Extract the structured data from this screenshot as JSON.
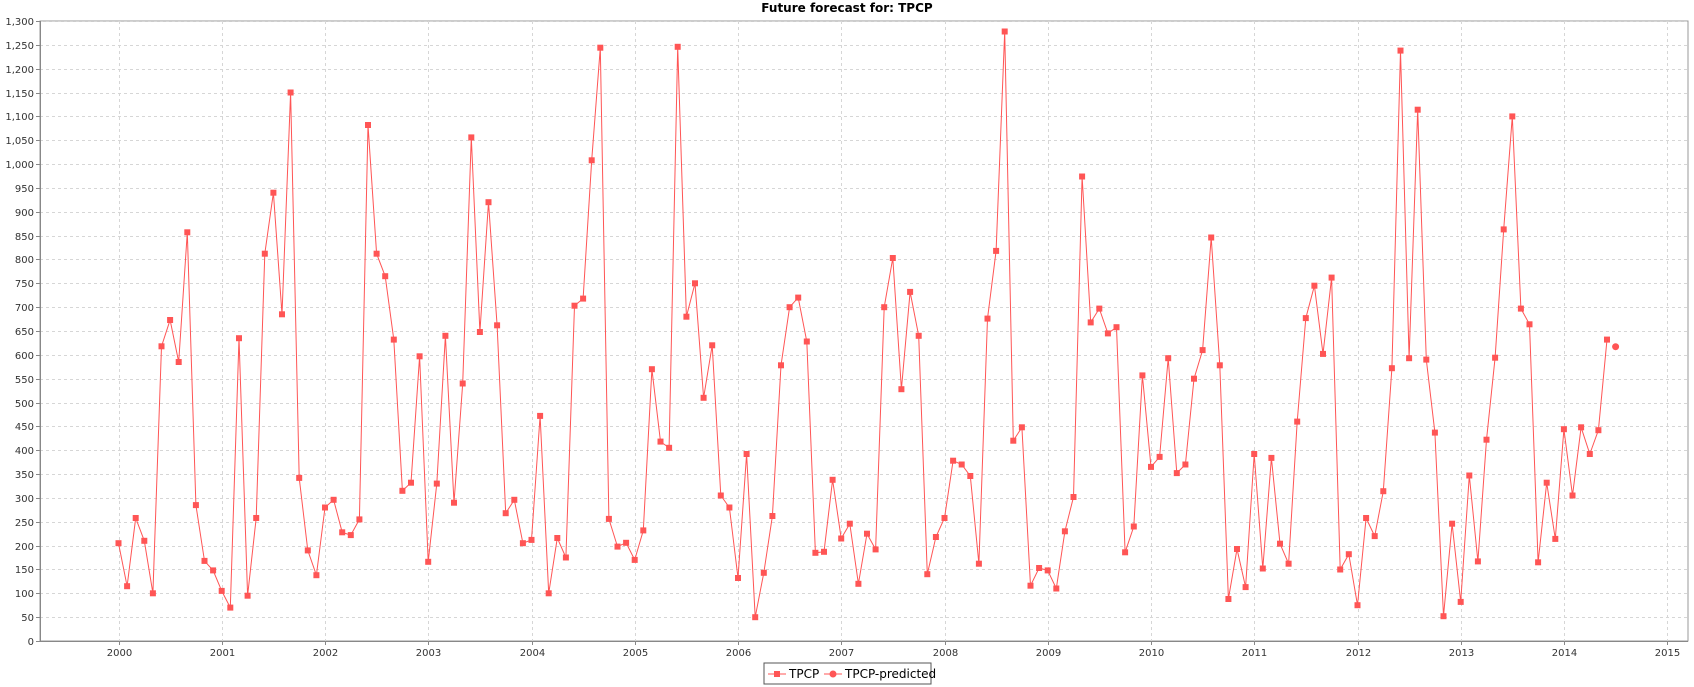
{
  "chart_data": {
    "type": "line",
    "title": "Future forecast for: TPCP",
    "xlabel": "",
    "ylabel": "",
    "xlim": [
      1999.5,
      2015.2
    ],
    "ylim": [
      0,
      1300
    ],
    "y_ticks": [
      0,
      50,
      100,
      150,
      200,
      250,
      300,
      350,
      400,
      450,
      500,
      550,
      600,
      650,
      700,
      750,
      800,
      850,
      900,
      950,
      1000,
      1050,
      1100,
      1150,
      1200,
      1250,
      1300
    ],
    "y_tick_labels": [
      "0",
      "50",
      "100",
      "150",
      "200",
      "250",
      "300",
      "350",
      "400",
      "450",
      "500",
      "550",
      "600",
      "650",
      "700",
      "750",
      "800",
      "850",
      "900",
      "950",
      "1,000",
      "1,050",
      "1,100",
      "1,150",
      "1,200",
      "1,250",
      "1,300"
    ],
    "x_ticks": [
      2000,
      2001,
      2002,
      2003,
      2004,
      2005,
      2006,
      2007,
      2008,
      2009,
      2010,
      2011,
      2012,
      2013,
      2014,
      2015
    ],
    "x_tick_labels": [
      "2000",
      "2001",
      "2002",
      "2003",
      "2004",
      "2005",
      "2006",
      "2007",
      "2008",
      "2009",
      "2010",
      "2011",
      "2012",
      "2013",
      "2014",
      "2015"
    ],
    "grid": true,
    "legend_position": "bottom-center",
    "series": [
      {
        "name": "TPCP",
        "marker": "square",
        "color": "#ff5555",
        "start": 2000,
        "step": 0.08333,
        "values": [
          205,
          115,
          258,
          210,
          100,
          618,
          673,
          585,
          857,
          285,
          168,
          148,
          105,
          70,
          635,
          95,
          258,
          812,
          940,
          685,
          1150,
          342,
          190,
          138,
          280,
          296,
          228,
          222,
          255,
          1082,
          812,
          765,
          632,
          315,
          332,
          597,
          166,
          330,
          640,
          290,
          540,
          1056,
          648,
          920,
          662,
          268,
          296,
          205,
          212,
          472,
          100,
          216,
          175,
          703,
          718,
          1008,
          1244,
          256,
          198,
          206,
          170,
          232,
          570,
          418,
          405,
          1246,
          680,
          750,
          510,
          620,
          305,
          280,
          132,
          392,
          50,
          143,
          262,
          578,
          700,
          720,
          628,
          185,
          187,
          338,
          215,
          246,
          120,
          225,
          192,
          700,
          803,
          528,
          732,
          640,
          140,
          218,
          258,
          378,
          370,
          346,
          162,
          676,
          818,
          1278,
          420,
          448,
          116,
          153,
          148,
          110,
          230,
          302,
          974,
          668,
          697,
          645,
          658,
          186,
          240,
          557,
          365,
          386,
          593,
          352,
          370,
          550,
          610,
          846,
          578,
          88,
          193,
          113,
          392,
          152,
          384,
          204,
          162,
          460,
          677,
          745,
          602,
          762,
          150,
          182,
          75,
          258,
          220,
          314,
          572,
          1238,
          593,
          1114,
          590,
          437,
          52,
          246,
          82,
          347,
          167,
          422,
          594,
          863,
          1100,
          697,
          664,
          165,
          332,
          214,
          444,
          305,
          448,
          392,
          442,
          632
        ]
      },
      {
        "name": "TPCP-predicted",
        "marker": "circle",
        "color": "#ff5555",
        "start": 2014.5,
        "step": 0.08333,
        "values": [
          617
        ]
      }
    ]
  }
}
